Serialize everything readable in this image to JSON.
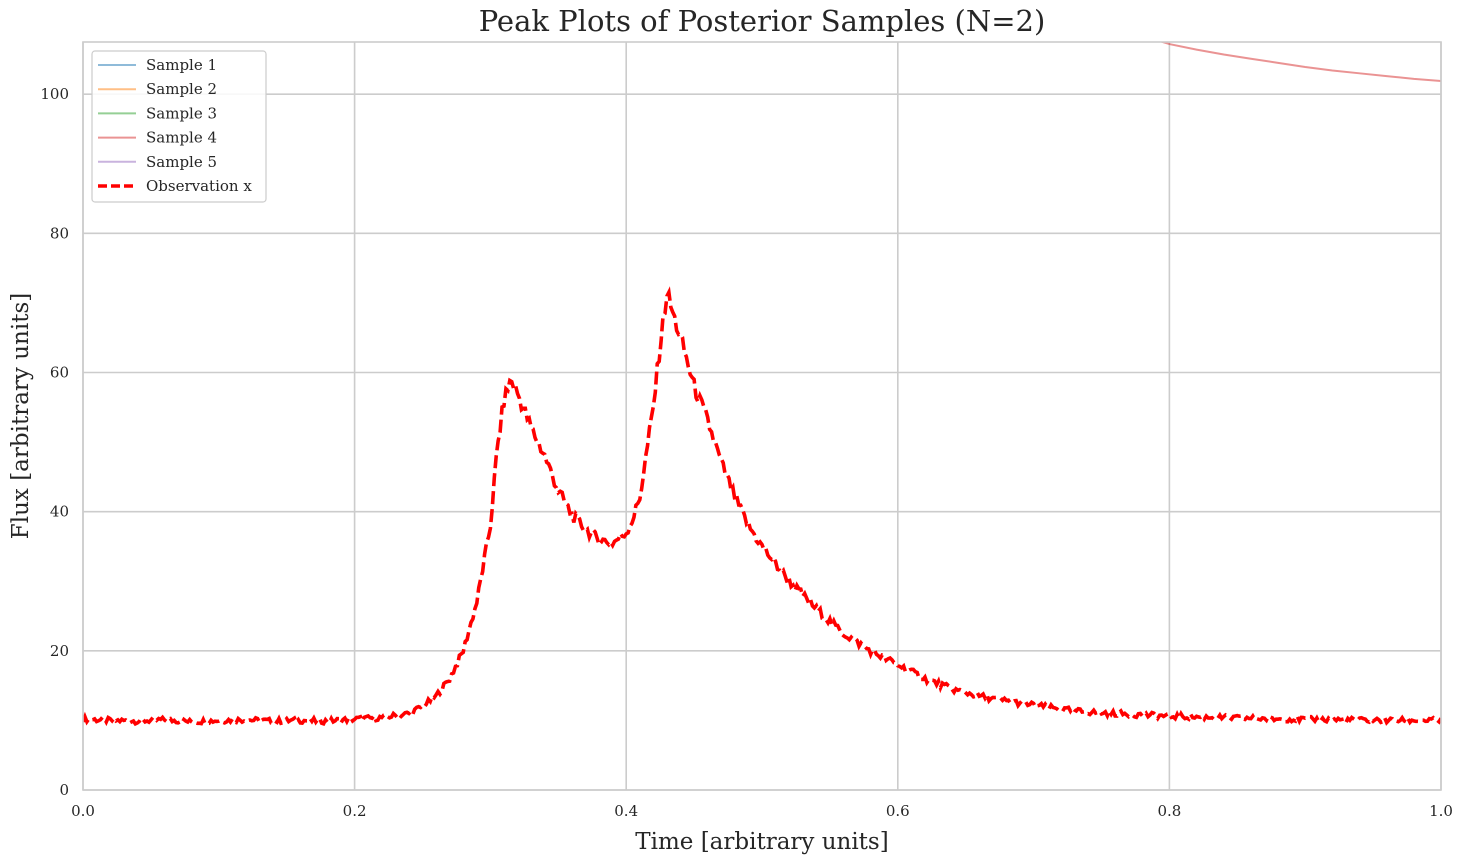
{
  "chart_data": {
    "type": "line",
    "title": "Peak Plots of Posterior Samples (N=2)",
    "xlabel": "Time [arbitrary units]",
    "ylabel": "Flux [arbitrary units]",
    "xlim": [
      0,
      1
    ],
    "ylim": [
      0,
      107.5
    ],
    "xticks": [
      0,
      0.2,
      0.4,
      0.6,
      0.8,
      1.0
    ],
    "xtick_labels": [
      "0.0",
      "0.2",
      "0.4",
      "0.6",
      "0.8",
      "1.0"
    ],
    "yticks": [
      0,
      20,
      40,
      60,
      80,
      100
    ],
    "ytick_labels": [
      "0",
      "20",
      "40",
      "60",
      "80",
      "100"
    ],
    "grid": true,
    "legend_position": "top-left",
    "series": [
      {
        "name": "Sample 1",
        "color": "#1f77b4",
        "x": [],
        "y": []
      },
      {
        "name": "Sample 2",
        "color": "#ff7f0e",
        "x": [],
        "y": []
      },
      {
        "name": "Sample 3",
        "color": "#2ca02c",
        "x": [],
        "y": []
      },
      {
        "name": "Sample 4",
        "color": "#d62728",
        "x": [
          0.79,
          0.8,
          0.82,
          0.84,
          0.86,
          0.88,
          0.9,
          0.92,
          0.94,
          0.96,
          0.98,
          1.0
        ],
        "y": [
          107.8,
          107.2,
          106.4,
          105.7,
          105.1,
          104.5,
          103.9,
          103.4,
          103.0,
          102.6,
          102.2,
          101.9
        ]
      },
      {
        "name": "Sample 5",
        "color": "#9467bd",
        "x": [],
        "y": []
      },
      {
        "name": "Observation x",
        "color": "#ff0000",
        "dashed": true,
        "x": [
          0.0,
          0.02,
          0.04,
          0.06,
          0.08,
          0.1,
          0.12,
          0.14,
          0.16,
          0.18,
          0.2,
          0.22,
          0.24,
          0.25,
          0.26,
          0.27,
          0.28,
          0.29,
          0.3,
          0.305,
          0.31,
          0.315,
          0.32,
          0.33,
          0.34,
          0.35,
          0.36,
          0.37,
          0.38,
          0.39,
          0.4,
          0.405,
          0.41,
          0.42,
          0.425,
          0.43,
          0.435,
          0.44,
          0.45,
          0.46,
          0.47,
          0.48,
          0.49,
          0.5,
          0.52,
          0.54,
          0.56,
          0.58,
          0.6,
          0.62,
          0.64,
          0.66,
          0.68,
          0.7,
          0.72,
          0.74,
          0.76,
          0.78,
          0.8,
          0.84,
          0.88,
          0.92,
          0.96,
          1.0
        ],
        "y": [
          10.2,
          10.0,
          9.9,
          10.1,
          9.8,
          10.0,
          10.1,
          9.9,
          10.0,
          9.9,
          10.2,
          10.4,
          11.0,
          12.0,
          13.5,
          16.0,
          20.0,
          27.0,
          38.0,
          49.0,
          56.0,
          59.0,
          57.0,
          52.0,
          48.0,
          43.0,
          39.5,
          37.5,
          36.0,
          35.5,
          37.0,
          39.0,
          42.0,
          55.0,
          64.0,
          71.5,
          68.0,
          65.0,
          58.0,
          53.0,
          47.0,
          42.0,
          38.0,
          35.0,
          30.0,
          26.0,
          22.5,
          20.0,
          18.0,
          16.0,
          14.5,
          13.5,
          12.8,
          12.2,
          11.6,
          11.2,
          11.0,
          10.8,
          10.6,
          10.4,
          10.2,
          10.1,
          10.0,
          10.0
        ]
      }
    ]
  }
}
